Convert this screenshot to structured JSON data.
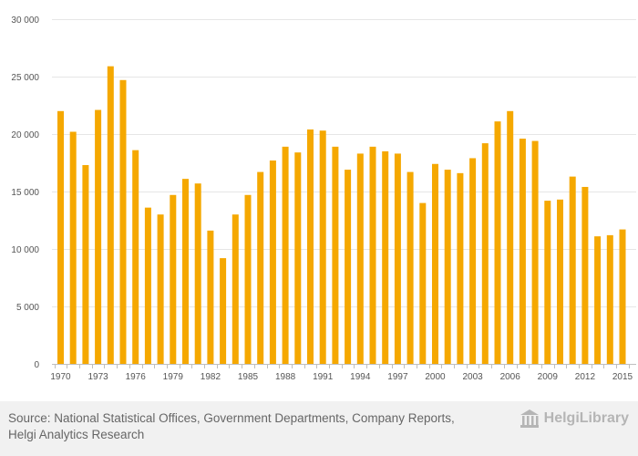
{
  "chart_data": {
    "type": "bar",
    "title": "",
    "xlabel": "",
    "ylabel": "",
    "ylim": [
      0,
      30000
    ],
    "yticks": [
      0,
      5000,
      10000,
      15000,
      20000,
      25000,
      30000
    ],
    "ytick_labels": [
      "0",
      "5 000",
      "10 000",
      "15 000",
      "20 000",
      "25 000",
      "30 000"
    ],
    "bar_color": "#f5a800",
    "categories": [
      "1970",
      "1971",
      "1972",
      "1973",
      "1974",
      "1975",
      "1976",
      "1977",
      "1978",
      "1979",
      "1980",
      "1981",
      "1982",
      "1983",
      "1984",
      "1985",
      "1986",
      "1987",
      "1988",
      "1989",
      "1990",
      "1991",
      "1992",
      "1993",
      "1994",
      "1995",
      "1996",
      "1997",
      "1998",
      "1999",
      "2000",
      "2001",
      "2002",
      "2003",
      "2004",
      "2005",
      "2006",
      "2007",
      "2008",
      "2009",
      "2010",
      "2011",
      "2012",
      "2013",
      "2014",
      "2015"
    ],
    "values": [
      22000,
      20200,
      17300,
      22100,
      25900,
      24700,
      18600,
      13600,
      13000,
      14700,
      16100,
      15700,
      11600,
      9200,
      13000,
      14700,
      16700,
      17700,
      18900,
      18400,
      20400,
      20300,
      18900,
      16900,
      18300,
      18900,
      18500,
      18300,
      16700,
      14000,
      17400,
      16900,
      16600,
      17900,
      19200,
      21100,
      22000,
      19600,
      19400,
      14200,
      14300,
      16300,
      15400,
      11100,
      11200,
      11700
    ],
    "xtick_labels": [
      "1970",
      "1973",
      "1976",
      "1979",
      "1982",
      "1985",
      "1988",
      "1991",
      "1994",
      "1997",
      "2000",
      "2003",
      "2006",
      "2009",
      "2012",
      "2015"
    ]
  },
  "footer": {
    "source_line1": "Source: National Statistical Offices, Government Departments, Company Reports,",
    "source_line2": "Helgi Analytics Research",
    "logo_text": "HelgiLibrary"
  }
}
